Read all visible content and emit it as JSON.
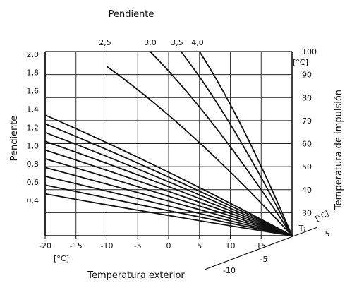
{
  "chart_data": {
    "type": "line",
    "title": "Pendiente",
    "xlabel": "Temperatura exterior",
    "ylabel_left": "Pendiente",
    "ylabel_right": "Temperatura de impulsión",
    "x_unit": "[°C]",
    "y_unit": "[°C]",
    "x_range": [
      -20,
      20
    ],
    "y_range": [
      20,
      100
    ],
    "x_ticks": [
      "-20",
      "-15",
      "-10",
      "-5",
      "0",
      "5",
      "10",
      "15"
    ],
    "y_ticks": [
      "30",
      "40",
      "50",
      "60",
      "70",
      "80",
      "90",
      "100"
    ],
    "left_ticks": [
      "0,4",
      "0,6",
      "0,8",
      "1,0",
      "1,2",
      "1,4",
      "1,6",
      "1,8",
      "2,0"
    ],
    "top_ticks": [
      "2,5",
      "3,0",
      "3,5",
      "4,0"
    ],
    "offset_axis_label": "Tᵢ",
    "offset_axis_unit": "[°C]",
    "offset_ticks": [
      "5",
      "-5",
      "-10"
    ],
    "series": [
      {
        "values": [
          [
            -20,
            38.2
          ],
          [
            20,
            20
          ]
        ]
      },
      {
        "values": [
          [
            -20,
            42.0
          ],
          [
            20,
            20
          ]
        ]
      },
      {
        "values": [
          [
            -20,
            45.8
          ],
          [
            20,
            20
          ]
        ]
      },
      {
        "values": [
          [
            -20,
            49.6
          ],
          [
            20,
            20
          ]
        ]
      },
      {
        "values": [
          [
            -20,
            53.4
          ],
          [
            20,
            20
          ]
        ]
      },
      {
        "values": [
          [
            -20,
            57.2
          ],
          [
            20,
            20
          ]
        ]
      },
      {
        "values": [
          [
            -20,
            61.0
          ],
          [
            20,
            20
          ]
        ]
      },
      {
        "values": [
          [
            -20,
            64.8
          ],
          [
            20,
            20
          ]
        ]
      },
      {
        "values": [
          [
            -20,
            68.6
          ],
          [
            20,
            20
          ]
        ]
      },
      {
        "values": [
          [
            -20,
            72.4
          ],
          [
            20,
            20
          ]
        ]
      },
      {
        "values": [
          [
            -10,
            93.5
          ],
          [
            20,
            20
          ]
        ]
      },
      {
        "values": [
          [
            -3,
            100
          ],
          [
            20,
            20
          ]
        ]
      },
      {
        "values": [
          [
            2,
            100
          ],
          [
            20,
            20
          ]
        ]
      },
      {
        "values": [
          [
            5,
            100
          ],
          [
            20,
            20
          ]
        ]
      }
    ]
  }
}
